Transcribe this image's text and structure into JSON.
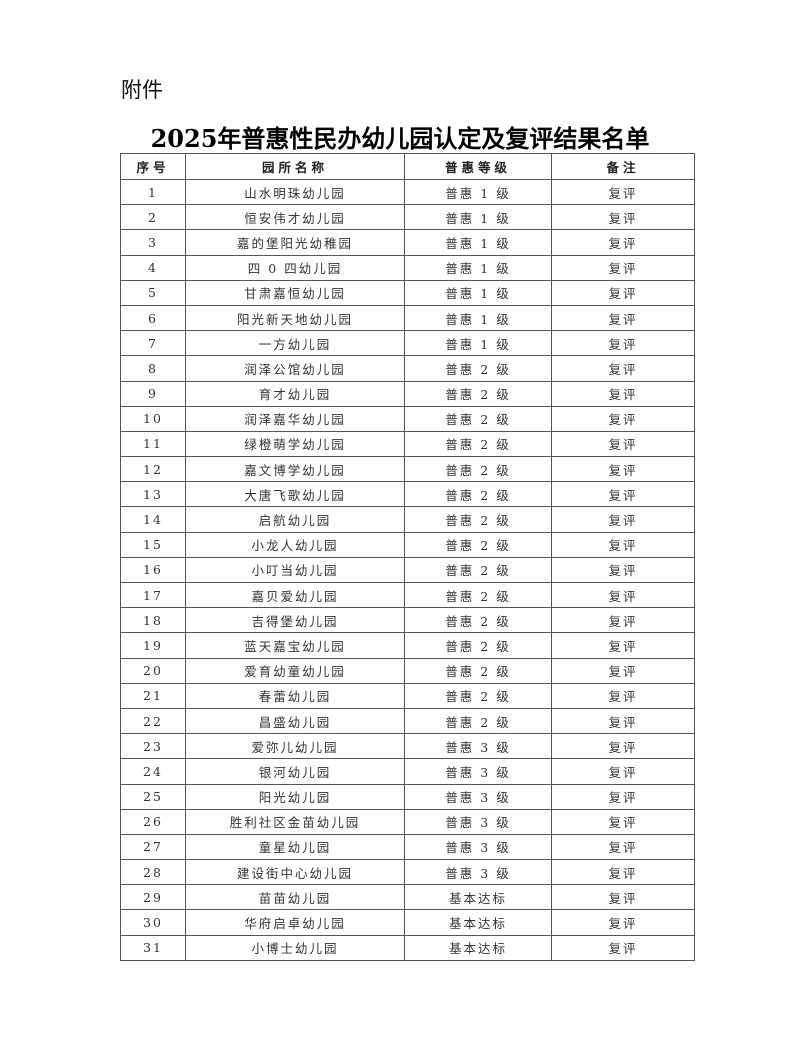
{
  "attachment_label": "附件",
  "title": "2025年普惠性民办幼儿园认定及复评结果名单",
  "table": {
    "headers": [
      "序号",
      "园所名称",
      "普惠等级",
      "备注"
    ],
    "rows": [
      [
        "1",
        "山水明珠幼儿园",
        "普惠 1 级",
        "复评"
      ],
      [
        "2",
        "恒安伟才幼儿园",
        "普惠 1 级",
        "复评"
      ],
      [
        "3",
        "嘉的堡阳光幼稚园",
        "普惠 1 级",
        "复评"
      ],
      [
        "4",
        "四 0 四幼儿园",
        "普惠 1 级",
        "复评"
      ],
      [
        "5",
        "甘肃嘉恒幼儿园",
        "普惠 1 级",
        "复评"
      ],
      [
        "6",
        "阳光新天地幼儿园",
        "普惠 1 级",
        "复评"
      ],
      [
        "7",
        "一方幼儿园",
        "普惠 1 级",
        "复评"
      ],
      [
        "8",
        "润泽公馆幼儿园",
        "普惠 2 级",
        "复评"
      ],
      [
        "9",
        "育才幼儿园",
        "普惠 2 级",
        "复评"
      ],
      [
        "10",
        "润泽嘉华幼儿园",
        "普惠 2 级",
        "复评"
      ],
      [
        "11",
        "绿橙萌学幼儿园",
        "普惠 2 级",
        "复评"
      ],
      [
        "12",
        "嘉文博学幼儿园",
        "普惠 2 级",
        "复评"
      ],
      [
        "13",
        "大唐飞歌幼儿园",
        "普惠 2 级",
        "复评"
      ],
      [
        "14",
        "启航幼儿园",
        "普惠 2 级",
        "复评"
      ],
      [
        "15",
        "小龙人幼儿园",
        "普惠 2 级",
        "复评"
      ],
      [
        "16",
        "小叮当幼儿园",
        "普惠 2 级",
        "复评"
      ],
      [
        "17",
        "嘉贝爱幼儿园",
        "普惠 2 级",
        "复评"
      ],
      [
        "18",
        "吉得堡幼儿园",
        "普惠 2 级",
        "复评"
      ],
      [
        "19",
        "蓝天嘉宝幼儿园",
        "普惠 2 级",
        "复评"
      ],
      [
        "20",
        "爱育幼童幼儿园",
        "普惠 2 级",
        "复评"
      ],
      [
        "21",
        "春蕾幼儿园",
        "普惠 2 级",
        "复评"
      ],
      [
        "22",
        "昌盛幼儿园",
        "普惠 2 级",
        "复评"
      ],
      [
        "23",
        "爱弥儿幼儿园",
        "普惠 3 级",
        "复评"
      ],
      [
        "24",
        "银河幼儿园",
        "普惠 3 级",
        "复评"
      ],
      [
        "25",
        "阳光幼儿园",
        "普惠 3 级",
        "复评"
      ],
      [
        "26",
        "胜利社区金苗幼儿园",
        "普惠 3 级",
        "复评"
      ],
      [
        "27",
        "童星幼儿园",
        "普惠 3 级",
        "复评"
      ],
      [
        "28",
        "建设街中心幼儿园",
        "普惠 3 级",
        "复评"
      ],
      [
        "29",
        "苗苗幼儿园",
        "基本达标",
        "复评"
      ],
      [
        "30",
        "华府启卓幼儿园",
        "基本达标",
        "复评"
      ],
      [
        "31",
        "小博士幼儿园",
        "基本达标",
        "复评"
      ]
    ]
  }
}
